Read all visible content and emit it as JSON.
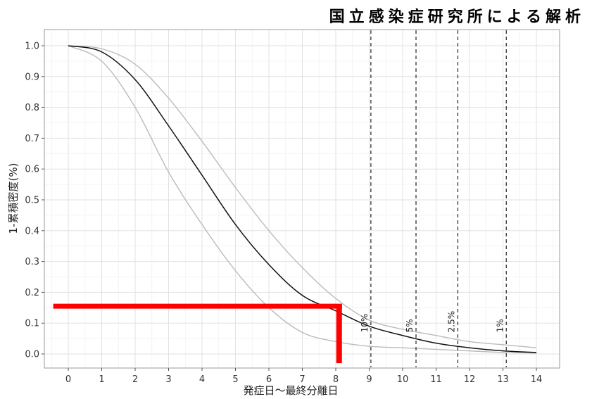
{
  "header": {
    "title": "国立感染症研究所による解析"
  },
  "chart_data": {
    "type": "line",
    "title": "国立感染症研究所による解析",
    "xlabel": "発症日〜最終分離日",
    "ylabel": "1-累積密度(%)",
    "xlim": [
      0,
      14
    ],
    "ylim": [
      0,
      1.0
    ],
    "x_ticks": [
      0,
      1,
      2,
      3,
      4,
      5,
      6,
      7,
      8,
      9,
      10,
      11,
      12,
      13,
      14
    ],
    "y_ticks": [
      0.0,
      0.1,
      0.2,
      0.3,
      0.4,
      0.5,
      0.6,
      0.7,
      0.8,
      0.9,
      1.0
    ],
    "y_tick_labels": [
      "0.0",
      "0.1",
      "0.2",
      "0.3",
      "0.4",
      "0.5",
      "0.6",
      "0.7",
      "0.8",
      "0.9",
      "1.0"
    ],
    "grid": true,
    "series": [
      {
        "role": "estimate",
        "color": "#111111",
        "x": [
          0,
          1,
          2,
          3,
          4,
          5,
          6,
          7,
          8,
          9,
          10,
          11,
          12,
          13,
          14
        ],
        "y": [
          1.0,
          0.98,
          0.89,
          0.74,
          0.58,
          0.42,
          0.29,
          0.19,
          0.14,
          0.09,
          0.06,
          0.035,
          0.02,
          0.01,
          0.005
        ]
      },
      {
        "role": "upper-bound",
        "color": "#bbbbbb",
        "x": [
          0,
          1,
          2,
          3,
          4,
          5,
          6,
          7,
          8,
          9,
          10,
          11,
          12,
          13,
          14
        ],
        "y": [
          1.0,
          0.99,
          0.94,
          0.83,
          0.69,
          0.54,
          0.4,
          0.28,
          0.18,
          0.11,
          0.08,
          0.06,
          0.04,
          0.03,
          0.02
        ]
      },
      {
        "role": "lower-bound",
        "color": "#bbbbbb",
        "x": [
          0,
          1,
          2,
          3,
          4,
          5,
          6,
          7,
          8,
          9,
          10,
          11,
          12,
          13,
          14
        ],
        "y": [
          1.0,
          0.95,
          0.8,
          0.59,
          0.42,
          0.27,
          0.15,
          0.07,
          0.04,
          0.025,
          0.02,
          0.015,
          0.01,
          0.005,
          0.003
        ]
      }
    ],
    "vlines": [
      {
        "x": 9.05,
        "label": "10%"
      },
      {
        "x": 10.4,
        "label": "5%"
      },
      {
        "x": 11.65,
        "label": "2.5%"
      },
      {
        "x": 13.1,
        "label": "1%"
      }
    ],
    "highlight": {
      "color": "#ff0000",
      "y": 0.155,
      "x_start": -0.45,
      "x_end": 8.1,
      "y_end": -0.03
    }
  }
}
